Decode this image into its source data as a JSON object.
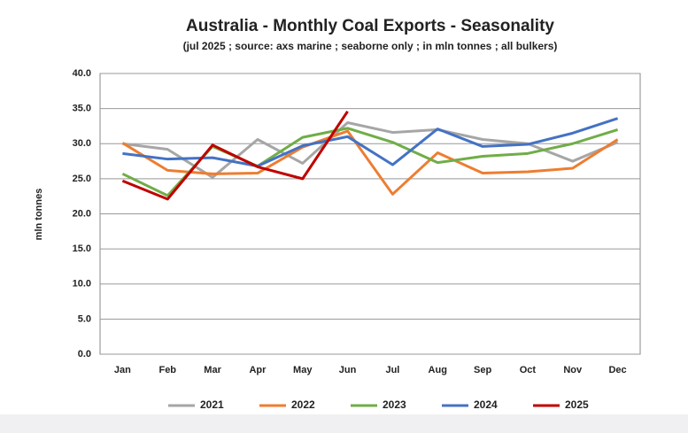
{
  "chart_data": {
    "type": "line",
    "title": "Australia - Monthly Coal Exports - Seasonality",
    "subtitle": "(jul 2025 ; source: axs marine ; seaborne only ; in mln tonnes ; all bulkers)",
    "y_label": "mln tonnes",
    "categories": [
      "Jan",
      "Feb",
      "Mar",
      "Apr",
      "May",
      "Jun",
      "Jul",
      "Aug",
      "Sep",
      "Oct",
      "Nov",
      "Dec"
    ],
    "series": [
      {
        "name": "2021",
        "color": "#a6a6a6",
        "values": [
          30,
          29.2,
          25.2,
          30.6,
          27.2,
          33,
          31.6,
          32,
          30.6,
          30,
          27.5,
          30.2
        ]
      },
      {
        "name": "2022",
        "color": "#ed7d31",
        "values": [
          30.1,
          26.2,
          25.7,
          25.8,
          29.5,
          31.8,
          22.8,
          28.7,
          25.8,
          26,
          26.5,
          30.6
        ]
      },
      {
        "name": "2023",
        "color": "#70ad47",
        "values": [
          25.7,
          22.6,
          29.6,
          26.8,
          30.9,
          32.2,
          30.2,
          27.3,
          28.2,
          28.6,
          30,
          32
        ]
      },
      {
        "name": "2024",
        "color": "#4472c4",
        "values": [
          28.6,
          27.8,
          28,
          26.8,
          29.7,
          31,
          27,
          32.1,
          29.6,
          29.9,
          31.5,
          33.6
        ]
      },
      {
        "name": "2025",
        "color": "#c00000",
        "values": [
          24.7,
          22.1,
          29.8,
          26.7,
          25,
          34.6,
          null,
          null,
          null,
          null,
          null,
          null
        ]
      }
    ],
    "ylim": [
      0,
      40
    ],
    "yticks": [
      {
        "value": 0,
        "label": "0.0"
      },
      {
        "value": 5,
        "label": "5.0"
      },
      {
        "value": 10,
        "label": "10.0"
      },
      {
        "value": 15,
        "label": "15.0"
      },
      {
        "value": 20,
        "label": "20.0"
      },
      {
        "value": 25,
        "label": "25.0"
      },
      {
        "value": 30,
        "label": "30.0"
      },
      {
        "value": 35,
        "label": "35.0"
      },
      {
        "value": 40,
        "label": "40.0"
      }
    ],
    "grid": true,
    "legend": "bottom"
  }
}
